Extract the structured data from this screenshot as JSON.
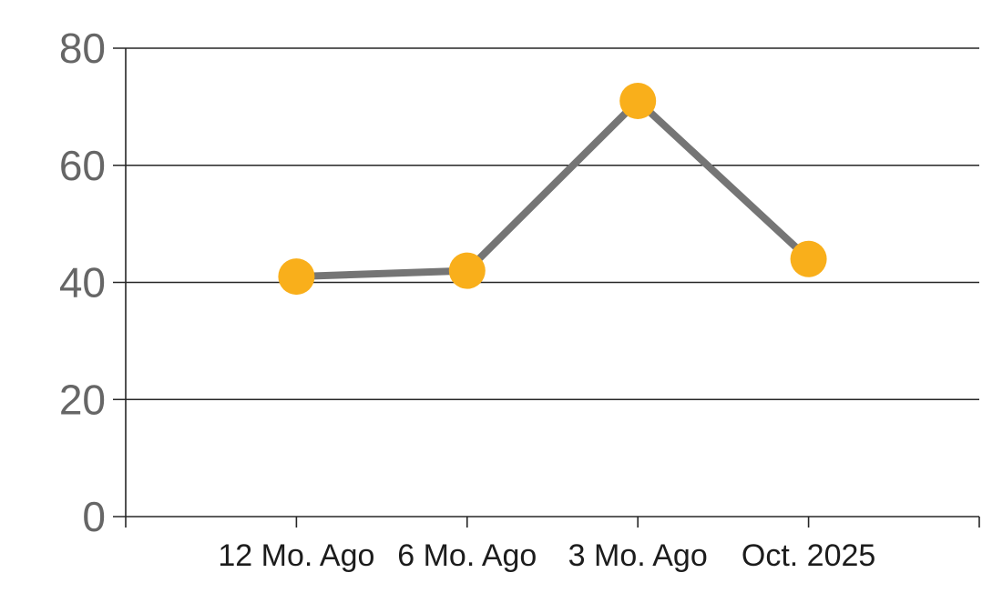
{
  "colors": {
    "background": "#ffffff",
    "marker": "#F9AF1B",
    "line": "#757575",
    "grid": "#262626",
    "axis": "#262626",
    "y_label": "#666666",
    "x_label": "#1c1c1c"
  },
  "chart_data": {
    "type": "line",
    "categories": [
      "12 Mo. Ago",
      "6 Mo. Ago",
      "3 Mo. Ago",
      "Oct. 2025"
    ],
    "series": [
      {
        "name": "value",
        "values": [
          41,
          42,
          71,
          44
        ]
      }
    ],
    "title": "",
    "xlabel": "",
    "ylabel": "",
    "ylim": [
      0,
      80
    ],
    "yticks": [
      0,
      20,
      40,
      60,
      80
    ],
    "grid": true,
    "legend": false
  }
}
